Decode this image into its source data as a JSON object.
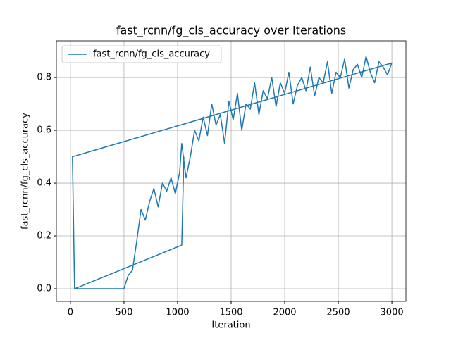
{
  "chart_data": {
    "type": "line",
    "title": "fast_rcnn/fg_cls_accuracy over Iterations",
    "xlabel": "Iteration",
    "ylabel": "fast_rcnn/fg_cls_accuracy",
    "x": [
      59,
      99,
      139,
      179,
      219,
      259,
      299,
      339,
      379,
      419,
      459,
      499,
      539,
      579,
      619,
      659,
      699,
      739,
      779,
      819,
      859,
      899,
      939,
      979,
      1019,
      1039,
      1079,
      1119,
      1159,
      1199,
      1239,
      1279,
      1319,
      1359,
      1399,
      1439,
      1479,
      1519,
      1559,
      1599,
      1639,
      1679,
      1719,
      1759,
      1799,
      1839,
      1879,
      1919,
      1959,
      1999,
      2039,
      2079,
      2119,
      2159,
      2199,
      2239,
      2279,
      2319,
      2359,
      2399,
      2439,
      2479,
      2519,
      2559,
      2599,
      2639,
      2679,
      2719,
      2759,
      2799,
      2839,
      2879,
      2919,
      2959,
      2999,
      19,
      39,
      1039,
      1059
    ],
    "series": [
      {
        "name": "fast_rcnn/fg_cls_accuracy",
        "color": "#1f77b4",
        "values": [
          0,
          0,
          0,
          0,
          0,
          0,
          0,
          0,
          0,
          0,
          0,
          0,
          0.05,
          0.07,
          0.18,
          0.3,
          0.26,
          0.33,
          0.38,
          0.31,
          0.4,
          0.37,
          0.42,
          0.36,
          0.44,
          0.55,
          0.42,
          0.5,
          0.6,
          0.56,
          0.65,
          0.58,
          0.7,
          0.62,
          0.66,
          0.55,
          0.71,
          0.64,
          0.74,
          0.6,
          0.7,
          0.68,
          0.78,
          0.66,
          0.75,
          0.72,
          0.8,
          0.69,
          0.78,
          0.74,
          0.82,
          0.7,
          0.77,
          0.8,
          0.75,
          0.84,
          0.73,
          0.8,
          0.78,
          0.86,
          0.74,
          0.82,
          0.8,
          0.87,
          0.76,
          0.83,
          0.85,
          0.8,
          0.88,
          0.82,
          0.78,
          0.86,
          0.84,
          0.81,
          0.855,
          0.5,
          0,
          0.165,
          0.5
        ]
      }
    ],
    "xlim": [
      -131,
      3131
    ],
    "ylim": [
      -0.048,
      0.939
    ],
    "xticks": [
      0,
      500,
      1000,
      1500,
      2000,
      2500,
      3000
    ],
    "yticks": [
      {
        "value": 0,
        "label": "0.0"
      },
      {
        "value": 0.2,
        "label": "0.2"
      },
      {
        "value": 0.4,
        "label": "0.4"
      },
      {
        "value": 0.6,
        "label": "0.6"
      },
      {
        "value": 0.8,
        "label": "0.8"
      }
    ],
    "grid": true,
    "legend": "upper left"
  }
}
